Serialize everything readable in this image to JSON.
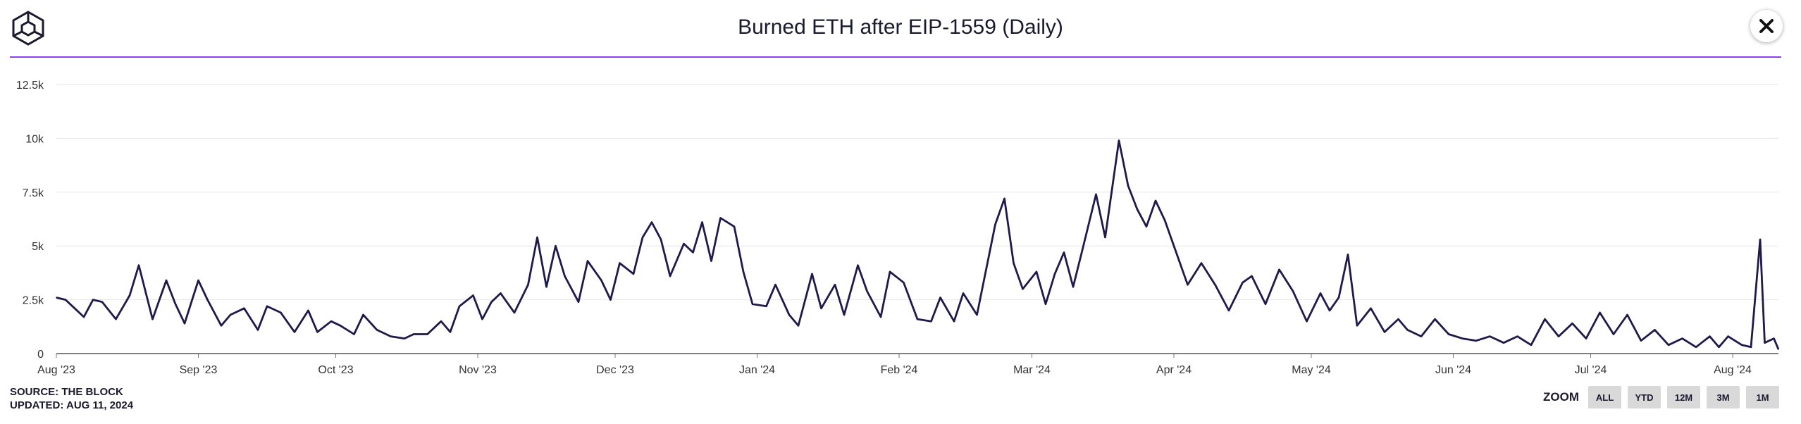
{
  "header": {
    "title": "Burned ETH after EIP-1559 (Daily)",
    "logo_icon": "cube-logo-icon",
    "close_icon": "close-icon"
  },
  "colors": {
    "accent": "#8a3ff0",
    "line": "#1e1a4a",
    "grid": "#e6e6e6"
  },
  "footer": {
    "source": "SOURCE: THE BLOCK",
    "updated": "UPDATED: AUG 11, 2024"
  },
  "zoom": {
    "label": "ZOOM",
    "buttons": [
      "ALL",
      "YTD",
      "12M",
      "3M",
      "1M"
    ]
  },
  "chart_data": {
    "type": "line",
    "title": "Burned ETH after EIP-1559 (Daily)",
    "ylim": [
      0,
      12500
    ],
    "yticks": [
      0,
      2500,
      5000,
      7500,
      10000,
      12500
    ],
    "ytick_labels": [
      "0",
      "2.5k",
      "5k",
      "7.5k",
      "10k",
      "12.5k"
    ],
    "x_range": [
      "2023-08-01",
      "2024-08-11"
    ],
    "xtick_labels": [
      "Aug '23",
      "Sep '23",
      "Oct '23",
      "Nov '23",
      "Dec '23",
      "Jan '24",
      "Feb '24",
      "Mar '24",
      "Apr '24",
      "May '24",
      "Jun '24",
      "Jul '24",
      "Aug '24"
    ],
    "xtick_dates": [
      "2023-08-01",
      "2023-09-01",
      "2023-10-01",
      "2023-11-01",
      "2023-12-01",
      "2024-01-01",
      "2024-02-01",
      "2024-03-01",
      "2024-04-01",
      "2024-05-01",
      "2024-06-01",
      "2024-07-01",
      "2024-08-01"
    ],
    "grid": true,
    "legend": "none",
    "series": [
      {
        "points": [
          [
            "2023-08-01",
            2600
          ],
          [
            "2023-08-03",
            2500
          ],
          [
            "2023-08-05",
            2100
          ],
          [
            "2023-08-07",
            1700
          ],
          [
            "2023-08-09",
            2500
          ],
          [
            "2023-08-11",
            2400
          ],
          [
            "2023-08-14",
            1600
          ],
          [
            "2023-08-17",
            2700
          ],
          [
            "2023-08-19",
            4100
          ],
          [
            "2023-08-22",
            1600
          ],
          [
            "2023-08-25",
            3400
          ],
          [
            "2023-08-27",
            2300
          ],
          [
            "2023-08-29",
            1400
          ],
          [
            "2023-09-01",
            3400
          ],
          [
            "2023-09-03",
            2500
          ],
          [
            "2023-09-06",
            1300
          ],
          [
            "2023-09-08",
            1800
          ],
          [
            "2023-09-11",
            2100
          ],
          [
            "2023-09-14",
            1100
          ],
          [
            "2023-09-16",
            2200
          ],
          [
            "2023-09-19",
            1900
          ],
          [
            "2023-09-22",
            1000
          ],
          [
            "2023-09-25",
            2000
          ],
          [
            "2023-09-27",
            1000
          ],
          [
            "2023-09-30",
            1500
          ],
          [
            "2023-10-02",
            1300
          ],
          [
            "2023-10-05",
            900
          ],
          [
            "2023-10-07",
            1800
          ],
          [
            "2023-10-10",
            1100
          ],
          [
            "2023-10-13",
            800
          ],
          [
            "2023-10-16",
            700
          ],
          [
            "2023-10-18",
            900
          ],
          [
            "2023-10-21",
            900
          ],
          [
            "2023-10-24",
            1500
          ],
          [
            "2023-10-26",
            1000
          ],
          [
            "2023-10-28",
            2200
          ],
          [
            "2023-10-31",
            2700
          ],
          [
            "2023-11-02",
            1600
          ],
          [
            "2023-11-04",
            2400
          ],
          [
            "2023-11-06",
            2800
          ],
          [
            "2023-11-09",
            1900
          ],
          [
            "2023-11-12",
            3200
          ],
          [
            "2023-11-14",
            5400
          ],
          [
            "2023-11-16",
            3100
          ],
          [
            "2023-11-18",
            5000
          ],
          [
            "2023-11-20",
            3600
          ],
          [
            "2023-11-23",
            2400
          ],
          [
            "2023-11-25",
            4300
          ],
          [
            "2023-11-28",
            3400
          ],
          [
            "2023-11-30",
            2500
          ],
          [
            "2023-12-02",
            4200
          ],
          [
            "2023-12-05",
            3700
          ],
          [
            "2023-12-07",
            5400
          ],
          [
            "2023-12-09",
            6100
          ],
          [
            "2023-12-11",
            5300
          ],
          [
            "2023-12-13",
            3600
          ],
          [
            "2023-12-16",
            5100
          ],
          [
            "2023-12-18",
            4700
          ],
          [
            "2023-12-20",
            6100
          ],
          [
            "2023-12-22",
            4300
          ],
          [
            "2023-12-24",
            6300
          ],
          [
            "2023-12-27",
            5900
          ],
          [
            "2023-12-29",
            3800
          ],
          [
            "2023-12-31",
            2300
          ],
          [
            "2024-01-03",
            2200
          ],
          [
            "2024-01-05",
            3200
          ],
          [
            "2024-01-08",
            1800
          ],
          [
            "2024-01-10",
            1300
          ],
          [
            "2024-01-13",
            3700
          ],
          [
            "2024-01-15",
            2100
          ],
          [
            "2024-01-18",
            3200
          ],
          [
            "2024-01-20",
            1800
          ],
          [
            "2024-01-23",
            4100
          ],
          [
            "2024-01-25",
            2900
          ],
          [
            "2024-01-28",
            1700
          ],
          [
            "2024-01-30",
            3800
          ],
          [
            "2024-02-02",
            3300
          ],
          [
            "2024-02-05",
            1600
          ],
          [
            "2024-02-08",
            1500
          ],
          [
            "2024-02-10",
            2600
          ],
          [
            "2024-02-13",
            1500
          ],
          [
            "2024-02-15",
            2800
          ],
          [
            "2024-02-18",
            1800
          ],
          [
            "2024-02-20",
            3900
          ],
          [
            "2024-02-22",
            6000
          ],
          [
            "2024-02-24",
            7200
          ],
          [
            "2024-02-26",
            4200
          ],
          [
            "2024-02-28",
            3000
          ],
          [
            "2024-03-02",
            3800
          ],
          [
            "2024-03-04",
            2300
          ],
          [
            "2024-03-06",
            3700
          ],
          [
            "2024-03-08",
            4700
          ],
          [
            "2024-03-10",
            3100
          ],
          [
            "2024-03-12",
            4800
          ],
          [
            "2024-03-15",
            7400
          ],
          [
            "2024-03-17",
            5400
          ],
          [
            "2024-03-19",
            8400
          ],
          [
            "2024-03-20",
            9900
          ],
          [
            "2024-03-22",
            7800
          ],
          [
            "2024-03-24",
            6700
          ],
          [
            "2024-03-26",
            5900
          ],
          [
            "2024-03-28",
            7100
          ],
          [
            "2024-03-30",
            6200
          ],
          [
            "2024-04-02",
            4400
          ],
          [
            "2024-04-04",
            3200
          ],
          [
            "2024-04-07",
            4200
          ],
          [
            "2024-04-10",
            3200
          ],
          [
            "2024-04-13",
            2000
          ],
          [
            "2024-04-16",
            3300
          ],
          [
            "2024-04-18",
            3600
          ],
          [
            "2024-04-21",
            2300
          ],
          [
            "2024-04-24",
            3900
          ],
          [
            "2024-04-27",
            2900
          ],
          [
            "2024-04-30",
            1500
          ],
          [
            "2024-05-03",
            2800
          ],
          [
            "2024-05-05",
            2000
          ],
          [
            "2024-05-07",
            2600
          ],
          [
            "2024-05-09",
            4600
          ],
          [
            "2024-05-11",
            1300
          ],
          [
            "2024-05-14",
            2100
          ],
          [
            "2024-05-17",
            1000
          ],
          [
            "2024-05-20",
            1600
          ],
          [
            "2024-05-22",
            1100
          ],
          [
            "2024-05-25",
            800
          ],
          [
            "2024-05-28",
            1600
          ],
          [
            "2024-05-31",
            900
          ],
          [
            "2024-06-03",
            700
          ],
          [
            "2024-06-06",
            600
          ],
          [
            "2024-06-09",
            800
          ],
          [
            "2024-06-12",
            500
          ],
          [
            "2024-06-15",
            800
          ],
          [
            "2024-06-18",
            400
          ],
          [
            "2024-06-21",
            1600
          ],
          [
            "2024-06-24",
            800
          ],
          [
            "2024-06-27",
            1400
          ],
          [
            "2024-06-30",
            700
          ],
          [
            "2024-07-03",
            1900
          ],
          [
            "2024-07-06",
            900
          ],
          [
            "2024-07-09",
            1800
          ],
          [
            "2024-07-12",
            600
          ],
          [
            "2024-07-15",
            1100
          ],
          [
            "2024-07-18",
            400
          ],
          [
            "2024-07-21",
            700
          ],
          [
            "2024-07-24",
            300
          ],
          [
            "2024-07-27",
            800
          ],
          [
            "2024-07-29",
            300
          ],
          [
            "2024-07-31",
            800
          ],
          [
            "2024-08-03",
            400
          ],
          [
            "2024-08-05",
            300
          ],
          [
            "2024-08-07",
            5300
          ],
          [
            "2024-08-08",
            500
          ],
          [
            "2024-08-10",
            700
          ],
          [
            "2024-08-11",
            200
          ]
        ]
      }
    ]
  }
}
